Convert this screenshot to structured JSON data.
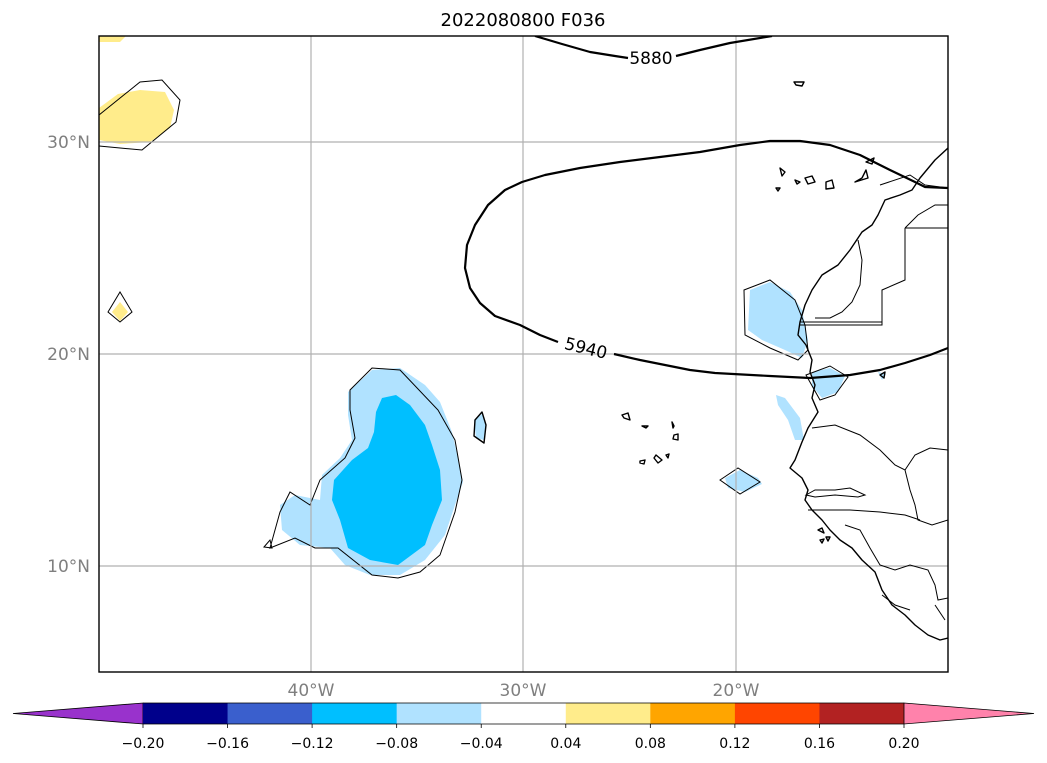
{
  "title": "2022080800 F036",
  "lat_labels": [
    "30°N",
    "20°N",
    "10°N"
  ],
  "lon_labels": [
    "40°W",
    "30°W",
    "20°W"
  ],
  "contours": [
    {
      "label": "5880",
      "value": 5880
    },
    {
      "label": "5940",
      "value": 5940
    }
  ],
  "colorbar": {
    "ticks": [
      "−0.20",
      "−0.16",
      "−0.12",
      "−0.08",
      "−0.04",
      "0.04",
      "0.08",
      "0.12",
      "0.16",
      "0.20"
    ],
    "colors": [
      "#9932cc",
      "#00008b",
      "#3a5fcd",
      "#00bfff",
      "#b0e2ff",
      "#ffffff",
      "#ffec8b",
      "#ffa500",
      "#ff4500",
      "#b22222",
      "#ff82ab"
    ],
    "extend": "both"
  },
  "map_extent": {
    "lon": [
      -50,
      -10
    ],
    "lat": [
      5,
      35
    ]
  },
  "shading_colors": {
    "neg_light": "#b0e2ff",
    "neg_mid": "#00bfff",
    "pos_light": "#ffec8b"
  }
}
